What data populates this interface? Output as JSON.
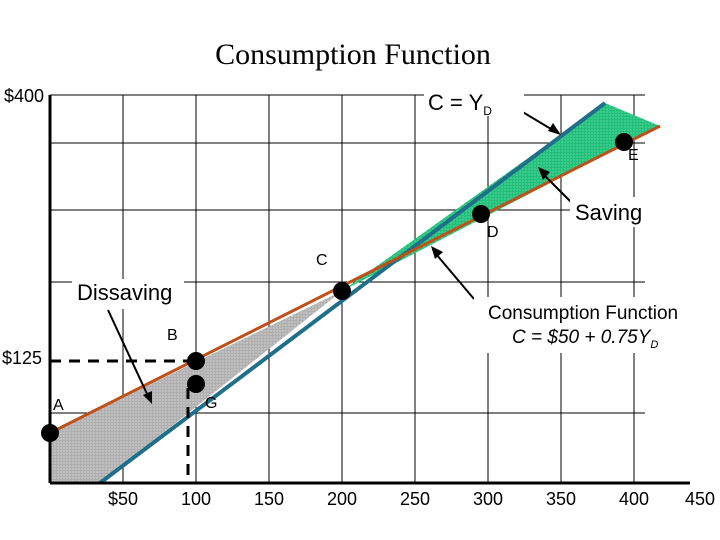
{
  "chart_data": {
    "type": "line",
    "title": "Consumption Function",
    "x_ticks": [
      "$50",
      "100",
      "150",
      "200",
      "250",
      "300",
      "350",
      "400",
      "450"
    ],
    "x_tick_values": [
      50,
      100,
      150,
      200,
      250,
      300,
      350,
      400,
      450
    ],
    "y_ticks": [
      {
        "label": "$400",
        "value": 400
      },
      {
        "label": "$125",
        "value": 125
      }
    ],
    "xlim": [
      0,
      450
    ],
    "ylim": [
      0,
      400
    ],
    "grid": true,
    "series": [
      {
        "name": "C = YD",
        "color": "#1f6f8b",
        "x": [
          0,
          388
        ],
        "y": [
          0,
          388
        ]
      },
      {
        "name": "Consumption Function C = $50 + 0.75YD",
        "color": "#c0501a",
        "x": [
          0,
          420
        ],
        "y": [
          50,
          365
        ]
      }
    ],
    "points": [
      {
        "label": "A",
        "x": 0,
        "y": 50
      },
      {
        "label": "B",
        "x": 100,
        "y": 125
      },
      {
        "label": "G",
        "x": 100,
        "y": 100
      },
      {
        "label": "C",
        "x": 200,
        "y": 200
      },
      {
        "label": "D",
        "x": 300,
        "y": 275
      },
      {
        "label": "E",
        "x": 400,
        "y": 350
      }
    ],
    "areas": [
      {
        "label": "Dissaving",
        "color": "#b8b8b8"
      },
      {
        "label": "Saving",
        "color": "#2ec27e"
      }
    ],
    "annotations": {
      "line45": {
        "text": "C = Y",
        "sub": "D"
      },
      "saving": "Saving",
      "dissaving": "Dissaving",
      "consumption_title": "Consumption Function",
      "consumption_eq": "C = $50 + 0.75Y",
      "consumption_sub": "D"
    }
  }
}
